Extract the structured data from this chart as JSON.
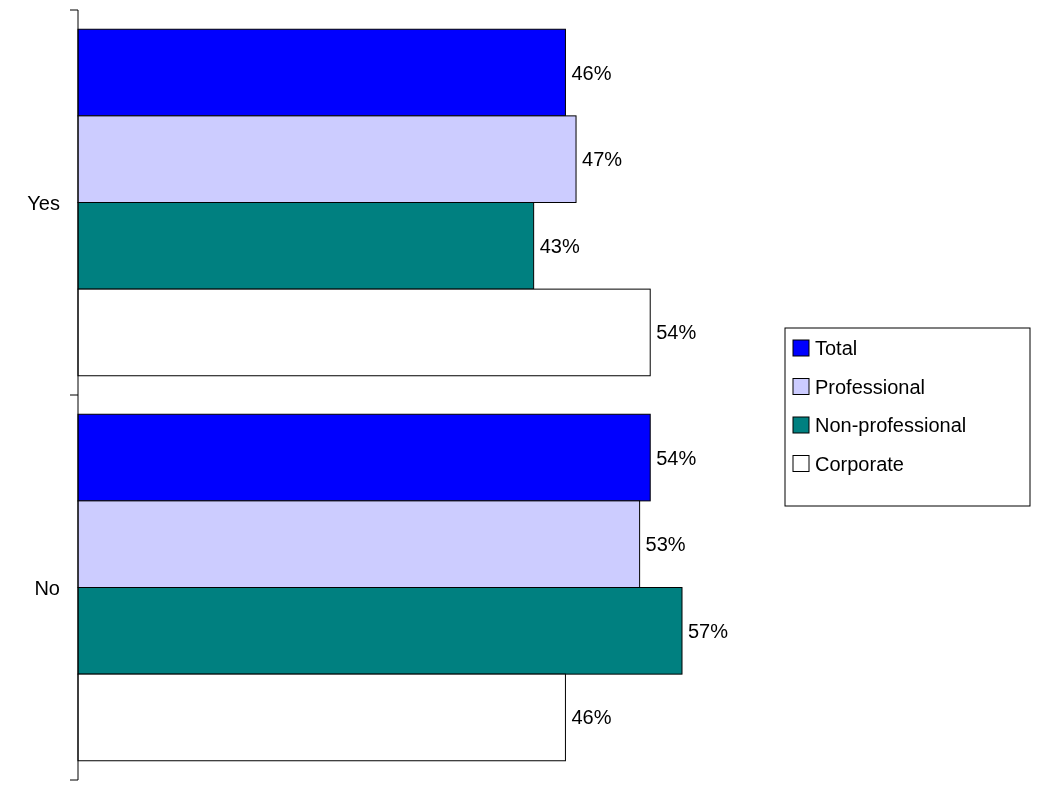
{
  "chart_data": {
    "type": "bar",
    "orientation": "horizontal",
    "categories": [
      "Yes",
      "No"
    ],
    "series": [
      {
        "name": "Total",
        "color": "#0000ff",
        "values": [
          46,
          54
        ],
        "value_labels": [
          "46%",
          "54%"
        ]
      },
      {
        "name": "Professional",
        "color": "#ccccff",
        "values": [
          47,
          53
        ],
        "value_labels": [
          "47%",
          "53%"
        ]
      },
      {
        "name": "Non-professional",
        "color": "#008080",
        "values": [
          43,
          57
        ],
        "value_labels": [
          "43%",
          "57%"
        ]
      },
      {
        "name": "Corporate",
        "color": "#ffffff",
        "values": [
          54,
          46
        ],
        "value_labels": [
          "54%",
          "46%"
        ]
      }
    ],
    "legend": "right"
  }
}
